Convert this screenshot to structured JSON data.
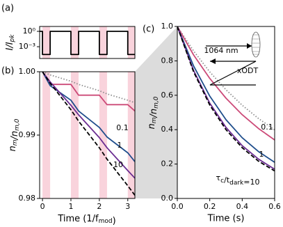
{
  "chart_data": [
    {
      "type": "line",
      "panel_label": "(a)",
      "ylabel": "I/Ipk",
      "log_y": true,
      "xlim": [
        -0.1,
        3.25
      ],
      "ylim": [
        5e-06,
        9
      ],
      "yticks": [
        {
          "value": 1,
          "label": "10⁰"
        },
        {
          "value": 0.001,
          "label": "10⁻³"
        }
      ],
      "shaded_regions": [
        [
          0,
          0.27
        ],
        [
          1,
          1.27
        ],
        [
          2,
          2.27
        ],
        [
          3,
          3.27
        ]
      ],
      "shade_color": "#f9d3dc",
      "x": [
        -0.1,
        0,
        0,
        0.27,
        0.27,
        1,
        1,
        1.27,
        1.27,
        2,
        2,
        2.27,
        2.27,
        3,
        3,
        3.25
      ],
      "series": [
        {
          "color": "#000000",
          "values": [
            1,
            1,
            3e-05,
            3e-05,
            1,
            1,
            3e-05,
            3e-05,
            1,
            1,
            3e-05,
            3e-05,
            1,
            1,
            3e-05,
            3e-05
          ]
        }
      ]
    },
    {
      "type": "line",
      "panel_label": "(b)",
      "ylabel": "nm/nm,0",
      "xlabel": "Time (1/fmod)",
      "xlim": [
        -0.1,
        3.25
      ],
      "ylim": [
        0.98,
        1.0
      ],
      "xticks": [
        0,
        1,
        2,
        3
      ],
      "yticks": [
        0.98,
        0.99,
        {
          "value": 1,
          "label": "1.00"
        }
      ],
      "shaded_regions": [
        [
          0,
          0.27
        ],
        [
          1,
          1.27
        ],
        [
          2,
          2.27
        ],
        [
          3,
          3.27
        ]
      ],
      "shade_color": "#f9d3dc",
      "x": [
        0,
        0.27,
        1,
        1.27,
        2,
        2.27,
        3,
        3.25
      ],
      "series": [
        {
          "color": "#8c8c8c",
          "dash": "dotted",
          "values": [
            1,
            0.9995,
            0.9985,
            0.998,
            0.997,
            0.9965,
            0.9955,
            0.9951
          ]
        },
        {
          "name": "0.1",
          "color": "#cc4a78",
          "values": [
            1,
            0.998,
            0.998,
            0.9963,
            0.9963,
            0.9948,
            0.9948,
            0.9938
          ]
        },
        {
          "name": "1",
          "color": "#1f4e8c",
          "values": [
            1,
            0.9978,
            0.9955,
            0.9938,
            0.9912,
            0.9897,
            0.9872,
            0.9858
          ]
        },
        {
          "name": "10",
          "color": "#6a2c91",
          "values": [
            1,
            0.9984,
            0.9947,
            0.9932,
            0.9896,
            0.988,
            0.9844,
            0.9832
          ]
        },
        {
          "color": "#000000",
          "dash": "dashed",
          "values": [
            1,
            0.9982,
            0.994,
            0.9922,
            0.988,
            0.9862,
            0.982,
            0.9805
          ]
        }
      ]
    },
    {
      "type": "line",
      "panel_label": "(c)",
      "ylabel": "nm/nm,0",
      "xlabel": "Time (s)",
      "xlim": [
        0,
        0.6
      ],
      "ylim": [
        0,
        1
      ],
      "xticks": [
        {
          "value": 0,
          "label": "0.0"
        },
        0.2,
        0.4,
        0.6
      ],
      "yticks": [
        {
          "value": 0,
          "label": "0.0"
        },
        0.2,
        0.4,
        0.6,
        0.8,
        {
          "value": 1,
          "label": "1.0"
        }
      ],
      "inset_labels": [
        "1064 nm",
        "xODT"
      ],
      "x": [
        0,
        0.1,
        0.2,
        0.3,
        0.4,
        0.5,
        0.6
      ],
      "series": [
        {
          "color": "#8c8c8c",
          "dash": "dotted",
          "values": [
            1,
            0.858,
            0.736,
            0.632,
            0.542,
            0.465,
            0.399
          ]
        },
        {
          "name": "0.1",
          "color": "#cc4a78",
          "values": [
            1,
            0.835,
            0.698,
            0.583,
            0.487,
            0.407,
            0.34
          ]
        },
        {
          "name": "1",
          "color": "#1f4e8c",
          "values": [
            1,
            0.771,
            0.595,
            0.458,
            0.353,
            0.273,
            0.21
          ]
        },
        {
          "name": "τc/tdark=10",
          "color": "#6a2c91",
          "values": [
            1,
            0.745,
            0.554,
            0.413,
            0.307,
            0.229,
            0.17
          ]
        },
        {
          "color": "#000000",
          "dash": "dashed",
          "values": [
            1,
            0.737,
            0.543,
            0.4,
            0.295,
            0.217,
            0.16
          ]
        }
      ]
    }
  ]
}
